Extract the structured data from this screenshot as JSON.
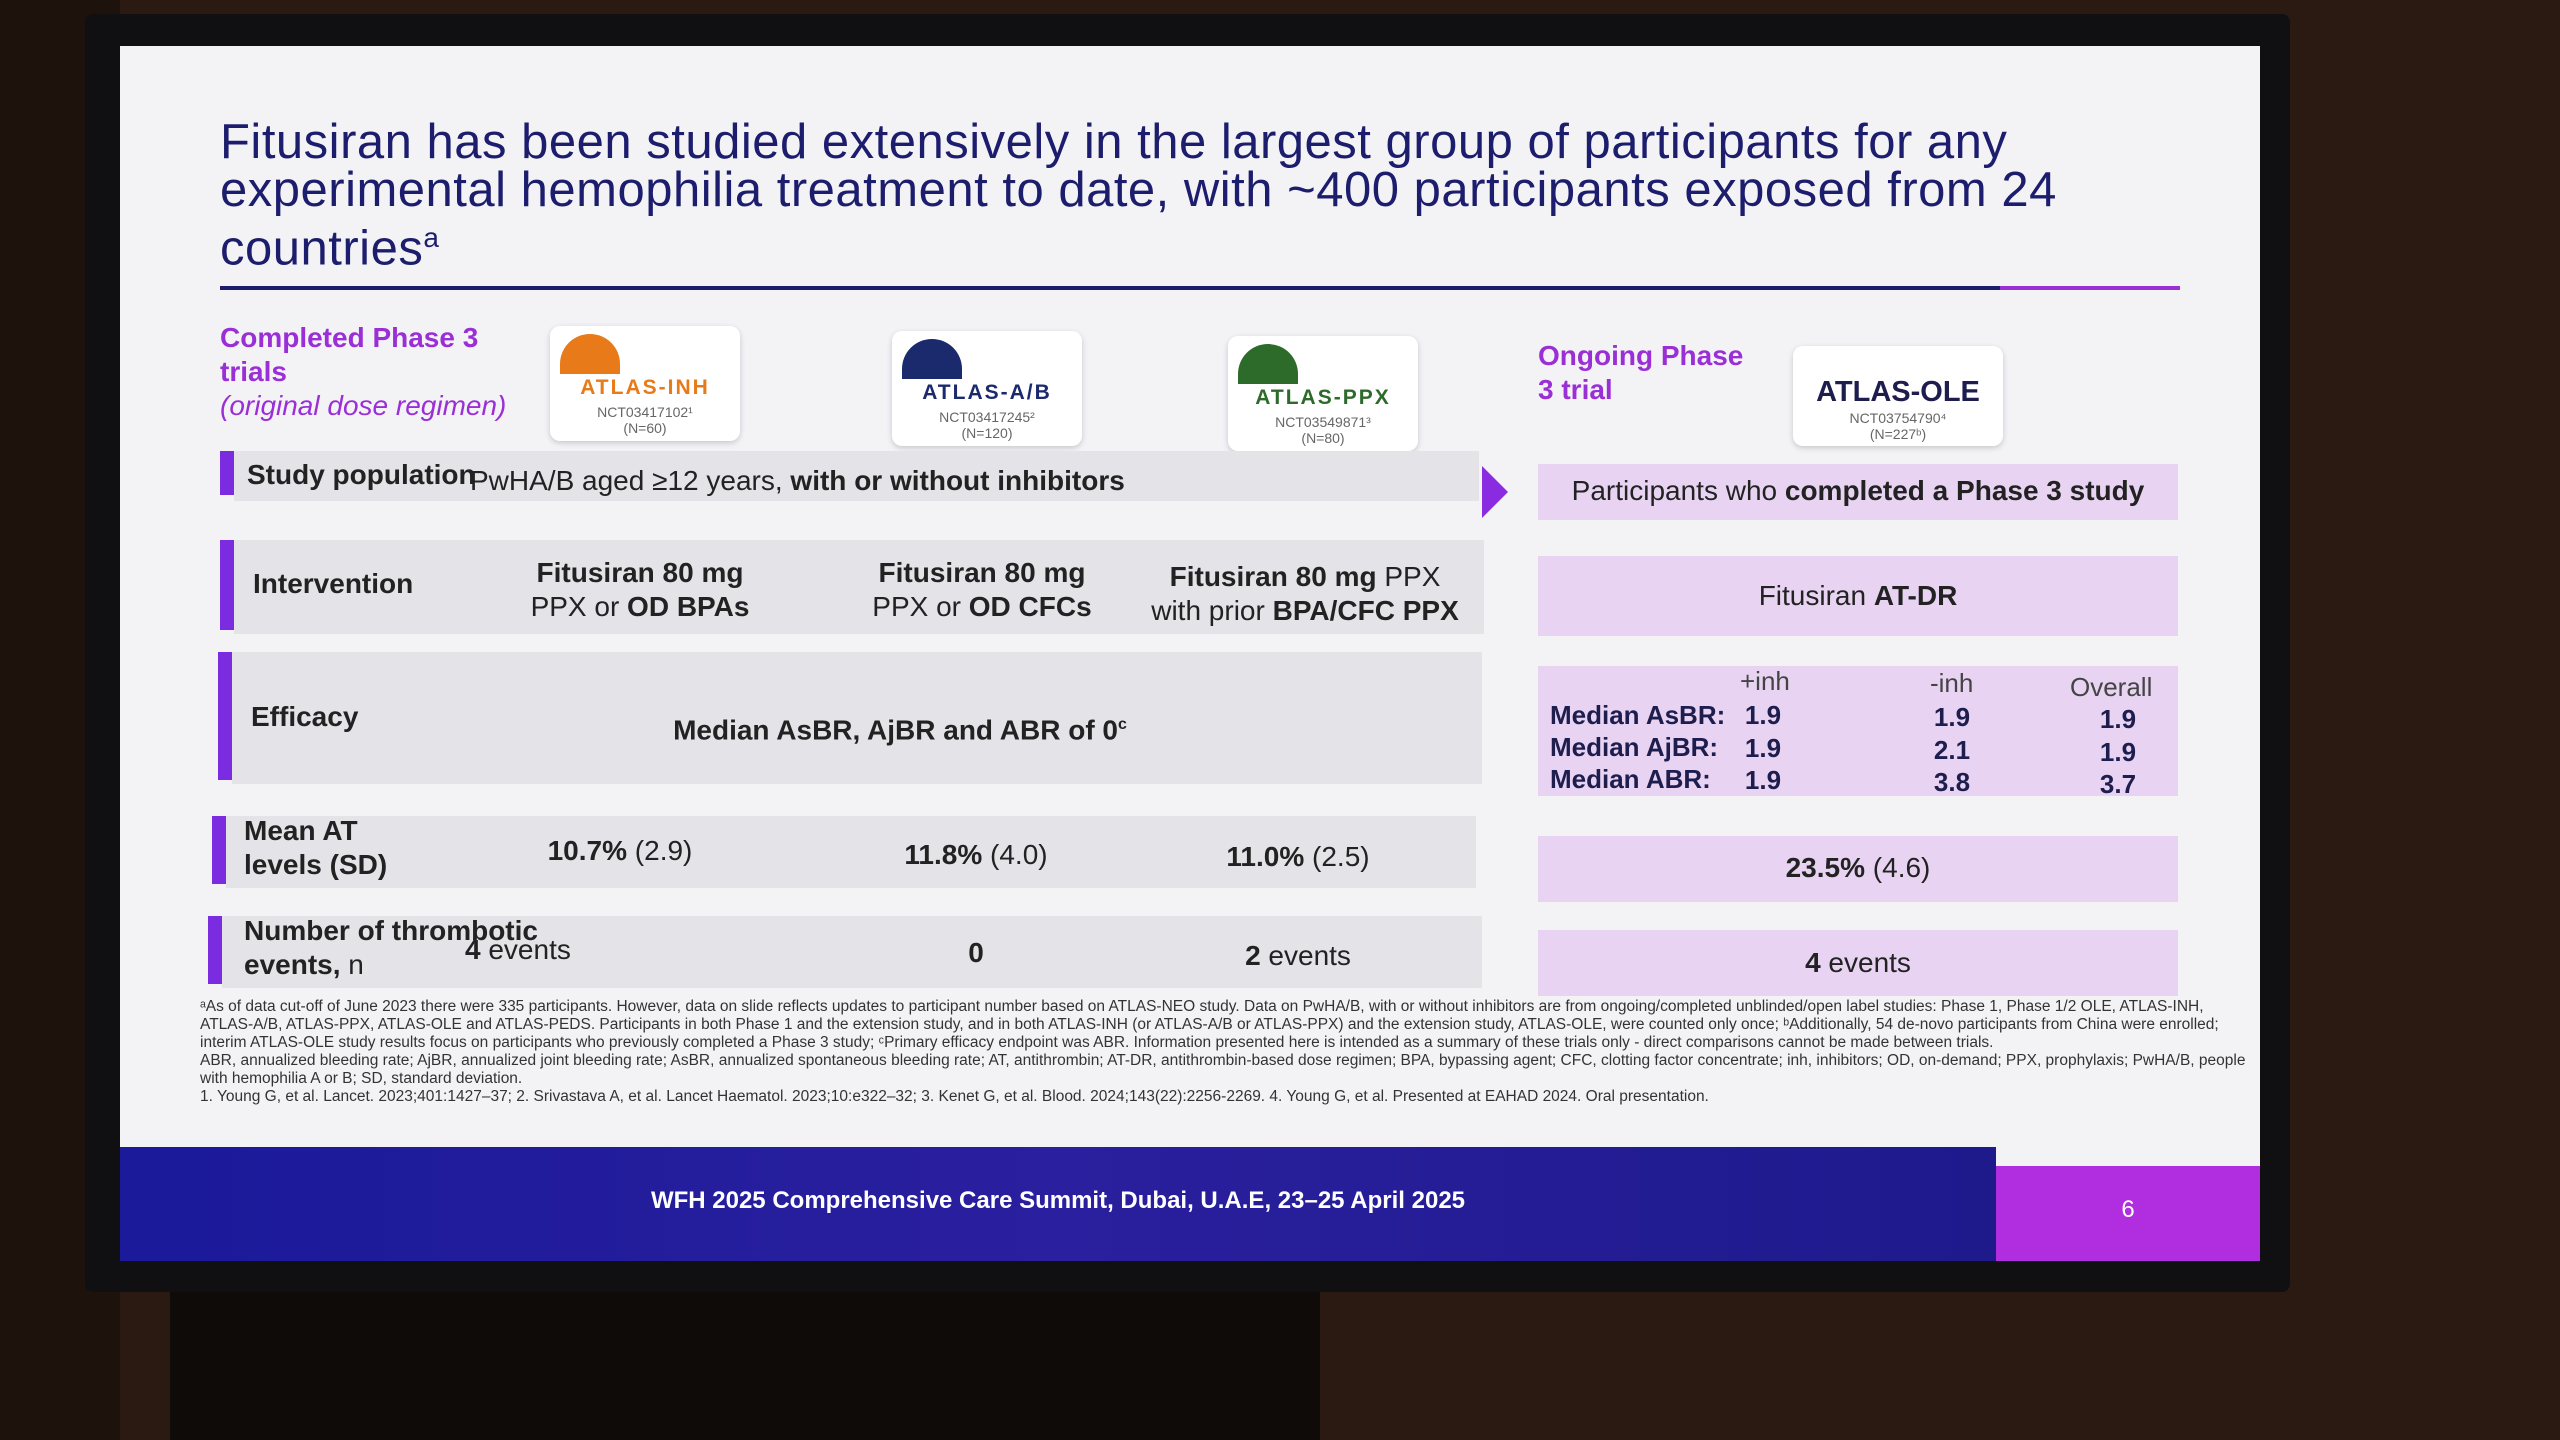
{
  "title": {
    "text": "Fitusiran has been studied extensively in the largest group of participants for any experimental hemophilia treatment to date, with ~400 participants exposed from 24 countries",
    "sup": "a"
  },
  "completed": {
    "label": "Completed Phase 3 trials",
    "sub": "(original dose regimen)"
  },
  "ongoing": {
    "label": "Ongoing Phase 3 trial"
  },
  "logos": [
    {
      "name": "ATLAS-INH",
      "nct": "NCT03417102¹",
      "n": "(N=60)",
      "color": "#e87a1a"
    },
    {
      "name": "ATLAS-A/B",
      "nct": "NCT03417245²",
      "n": "(N=120)",
      "color": "#1a2a6c"
    },
    {
      "name": "ATLAS-PPX",
      "nct": "NCT03549871³",
      "n": "(N=80)",
      "color": "#2d6b2a"
    },
    {
      "name": "ATLAS-OLE",
      "nct": "NCT03754790⁴",
      "n": "(N=227ᵇ)",
      "color": "#1d1d4e"
    }
  ],
  "rows": {
    "study_population": {
      "label": "Study population",
      "text_pre": "PwHA/B aged ≥12 years, ",
      "text_bold": "with or without inhibitors",
      "right_pre": "Participants who ",
      "right_bold": "completed a Phase 3 study"
    },
    "intervention": {
      "label": "Intervention",
      "c1_bold1": "Fitusiran 80 mg",
      "c1_pre": "PPX or ",
      "c1_bold2": "OD BPAs",
      "c2_bold1": "Fitusiran 80 mg",
      "c2_pre": "PPX or ",
      "c2_bold2": "OD CFCs",
      "c3_bold1": "Fitusiran 80 mg",
      "c3_post": " PPX",
      "c3_pre": "with prior ",
      "c3_bold2": "BPA/CFC PPX",
      "right_pre": "Fitusiran ",
      "right_bold": "AT-DR"
    },
    "efficacy": {
      "label": "Efficacy",
      "text": "Median AsBR, AjBR and ABR of 0",
      "sup": "c",
      "headers": [
        "+inh",
        "-inh",
        "Overall"
      ],
      "stats": [
        {
          "label": "Median AsBR:",
          "values": [
            "1.9",
            "1.9",
            "1.9"
          ]
        },
        {
          "label": "Median AjBR:",
          "values": [
            "1.9",
            "2.1",
            "1.9"
          ]
        },
        {
          "label": "Median ABR:",
          "values": [
            "1.9",
            "3.8",
            "3.7"
          ]
        }
      ]
    },
    "mean_at": {
      "label_line1": "Mean AT",
      "label_line2": "levels (SD)",
      "values": [
        {
          "bold": "10.7%",
          "rest": " (2.9)"
        },
        {
          "bold": "11.8%",
          "rest": " (4.0)"
        },
        {
          "bold": "11.0%",
          "rest": " (2.5)"
        }
      ],
      "right": {
        "bold": "23.5%",
        "rest": " (4.6)"
      }
    },
    "thrombotic": {
      "label_line1": "Number of thrombotic",
      "label_line2": "events,",
      "label_n": " n",
      "values": [
        {
          "bold": "4",
          "rest": " events"
        },
        {
          "bold": "0",
          "rest": ""
        },
        {
          "bold": "2",
          "rest": " events"
        }
      ],
      "right": {
        "bold": "4",
        "rest": " events"
      }
    }
  },
  "footnotes": [
    "ᵃAs of data cut-off of June 2023 there were 335 participants. However, data on slide reflects updates to participant number based on ATLAS-NEO study. Data on PwHA/B, with or without inhibitors are from ongoing/completed unblinded/open label studies: Phase 1, Phase 1/2 OLE, ATLAS-INH, ATLAS-A/B, ATLAS-PPX, ATLAS-OLE and ATLAS-PEDS. Participants in both Phase 1 and the extension study, and in both ATLAS-INH (or ATLAS-A/B or ATLAS-PPX) and the extension study, ATLAS-OLE, were counted only once; ᵇAdditionally, 54 de-novo participants from China were enrolled; interim ATLAS-OLE study results focus on participants who previously completed a Phase 3 study; ᶜPrimary efficacy endpoint was ABR. Information presented here is intended as a summary of these trials only - direct comparisons cannot be made between trials.",
    "ABR, annualized bleeding rate; AjBR, annualized joint bleeding rate; AsBR, annualized spontaneous bleeding rate; AT, antithrombin; AT-DR, antithrombin-based dose regimen; BPA, bypassing agent; CFC, clotting factor concentrate; inh, inhibitors; OD, on-demand; PPX, prophylaxis; PwHA/B, people with hemophilia A or B; SD, standard deviation.",
    "1. Young G, et al. Lancet. 2023;401:1427–37; 2. Srivastava A, et al. Lancet Haematol. 2023;10:e322–32; 3. Kenet G, et al. Blood. 2024;143(22):2256-2269. 4. Young G, et al. Presented at EAHAD 2024. Oral presentation."
  ],
  "footer": {
    "text": "WFH 2025 Comprehensive Care Summit, Dubai, U.A.E, 23–25 April 2025",
    "page": "6"
  }
}
